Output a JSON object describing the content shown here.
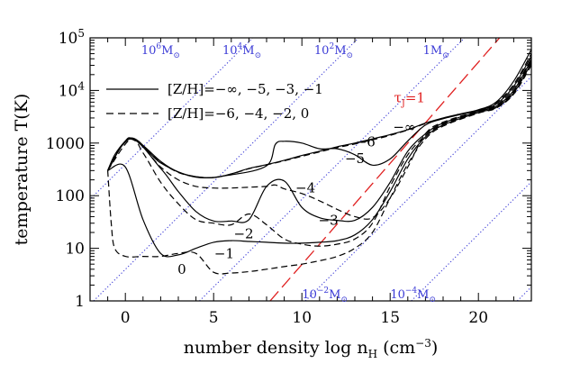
{
  "chart_data": {
    "type": "line",
    "xlabel": {
      "main": "number density log n",
      "sub": "H",
      "tail": " (cm",
      "sup": "−3",
      "close": ")"
    },
    "ylabel": "temperature T(K)",
    "xlim": [
      -2,
      23
    ],
    "ylim_log10": [
      0,
      5
    ],
    "yscale": "log",
    "x_ticks": [
      {
        "value": 0,
        "label": "0"
      },
      {
        "value": 5,
        "label": "5"
      },
      {
        "value": 10,
        "label": "10"
      },
      {
        "value": 15,
        "label": "15"
      },
      {
        "value": 20,
        "label": "20"
      }
    ],
    "y_ticks": [
      {
        "value": 1,
        "label": "1"
      },
      {
        "value": 10,
        "label": "10"
      },
      {
        "value": 100,
        "label": "100"
      },
      {
        "value": 1000,
        "label": "1000"
      },
      {
        "value": 10000,
        "label": "10",
        "sup": "4"
      },
      {
        "value": 100000,
        "label": "10",
        "sup": "5"
      }
    ],
    "legend": [
      {
        "style": "solid",
        "label": "[Z/H]=−∞, −5, −3, −1"
      },
      {
        "style": "dashed",
        "label": "[Z/H]=−6, −4, −2, 0"
      }
    ],
    "series": [
      {
        "label": "−∞",
        "style": "solid",
        "x": [
          -1,
          -0.6,
          0,
          0.3,
          1,
          2,
          3,
          4,
          5,
          6,
          7,
          8,
          9,
          10,
          11,
          12,
          13,
          14,
          15,
          16,
          17,
          18,
          19,
          20,
          21,
          22,
          23
        ],
        "y": [
          300,
          600,
          1100,
          1250,
          900,
          450,
          280,
          230,
          220,
          260,
          330,
          390,
          470,
          580,
          700,
          850,
          1000,
          1200,
          1450,
          1800,
          2400,
          3000,
          3600,
          4300,
          6000,
          15000,
          60000
        ]
      },
      {
        "label": "−6",
        "style": "dashed",
        "x": [
          -1,
          -0.6,
          0,
          0.3,
          1,
          2,
          3,
          4,
          5,
          6,
          7,
          8,
          9,
          10,
          11,
          12,
          13,
          14,
          15,
          16,
          17,
          18,
          19,
          20,
          21,
          22,
          23
        ],
        "y": [
          300,
          580,
          1050,
          1200,
          880,
          440,
          275,
          230,
          222,
          258,
          325,
          385,
          460,
          560,
          680,
          820,
          960,
          1150,
          1400,
          1780,
          2350,
          2950,
          3550,
          4250,
          5800,
          13000,
          50000
        ]
      },
      {
        "label": "−5",
        "style": "solid",
        "x": [
          -1,
          0.3,
          2,
          4,
          6,
          8,
          8.5,
          9,
          10,
          11,
          12,
          13,
          14,
          15,
          16,
          17,
          18,
          20,
          21,
          22,
          23
        ],
        "y": [
          300,
          1250,
          420,
          225,
          250,
          370,
          950,
          1080,
          1000,
          780,
          780,
          600,
          380,
          500,
          1100,
          2200,
          2900,
          4200,
          5500,
          12000,
          45000
        ]
      },
      {
        "label": "−4",
        "style": "dashed",
        "x": [
          -1,
          0.3,
          2,
          3,
          4,
          5,
          6,
          7,
          8,
          8.5,
          9,
          10,
          11,
          12,
          13,
          14,
          15,
          16,
          17,
          18,
          20,
          21,
          22,
          23
        ],
        "y": [
          300,
          1200,
          350,
          200,
          150,
          140,
          140,
          145,
          150,
          160,
          135,
          110,
          80,
          55,
          40,
          38,
          90,
          350,
          1500,
          2500,
          4100,
          5200,
          11000,
          40000
        ]
      },
      {
        "label": "−3",
        "style": "solid",
        "x": [
          -1,
          0.3,
          2,
          3,
          4,
          5,
          6,
          7,
          8,
          9,
          10,
          11,
          12,
          13,
          14,
          15,
          16,
          17,
          18,
          20,
          21,
          22,
          23
        ],
        "y": [
          300,
          1200,
          330,
          120,
          50,
          33,
          33,
          35,
          150,
          190,
          60,
          38,
          34,
          34,
          60,
          180,
          700,
          1500,
          2400,
          4000,
          5000,
          10000,
          38000
        ]
      },
      {
        "label": "−2",
        "style": "dashed",
        "x": [
          -1,
          0.3,
          1,
          2,
          3,
          4,
          5,
          6,
          7,
          8,
          9,
          10,
          11,
          12,
          13,
          14,
          15,
          16,
          17,
          18,
          20,
          21,
          22,
          23
        ],
        "y": [
          300,
          1200,
          650,
          180,
          70,
          35,
          30,
          28,
          45,
          28,
          15,
          12,
          11,
          12,
          15,
          30,
          150,
          600,
          1400,
          2300,
          3900,
          4900,
          9500,
          35000
        ]
      },
      {
        "label": "−1",
        "style": "solid",
        "x": [
          -1,
          0,
          1,
          2,
          3,
          4,
          5,
          6,
          7,
          8,
          9,
          10,
          11,
          12,
          13,
          14,
          15,
          16,
          17,
          18,
          20,
          21,
          22,
          23
        ],
        "y": [
          300,
          350,
          35,
          8,
          7.5,
          10,
          13,
          14,
          13.5,
          13,
          12.5,
          12.5,
          13,
          14,
          18,
          35,
          120,
          500,
          1300,
          2200,
          3800,
          4700,
          9000,
          33000
        ]
      },
      {
        "label": "0",
        "style": "dashed",
        "x": [
          -1,
          -0.8,
          -0.6,
          0,
          1,
          2,
          3,
          4,
          5,
          6,
          7,
          8,
          9,
          10,
          11,
          12,
          13,
          14,
          15,
          16,
          17,
          18,
          20,
          21,
          22,
          23
        ],
        "y": [
          300,
          30,
          10,
          7,
          7,
          7,
          8,
          8,
          3.5,
          3.4,
          3.6,
          4,
          4.5,
          5,
          5.8,
          7,
          10,
          20,
          90,
          400,
          1200,
          2100,
          3700,
          4600,
          8500,
          30000
        ]
      }
    ],
    "curve_labels": [
      {
        "text": "−∞",
        "x": 15.8,
        "y": 2000
      },
      {
        "text": "−6",
        "x": 13.6,
        "y": 1050
      },
      {
        "text": "−5",
        "x": 13.0,
        "y": 510
      },
      {
        "text": "−4",
        "x": 10.2,
        "y": 140
      },
      {
        "text": "−3",
        "x": 11.5,
        "y": 34
      },
      {
        "text": "−2",
        "x": 6.7,
        "y": 19
      },
      {
        "text": "−1",
        "x": 5.6,
        "y": 8
      },
      {
        "text": "0",
        "x": 3.2,
        "y": 4
      }
    ],
    "jeans_mass_lines": {
      "color": "#3b3bd6",
      "style": "dotted",
      "slope": 0.333,
      "lines": [
        {
          "label": "10",
          "sup": "6",
          "x0": -7.8,
          "label_at": [
            2.0,
            100000
          ]
        },
        {
          "label": "10",
          "sup": "4",
          "x0": -1.8,
          "label_at": [
            6.6,
            100000
          ]
        },
        {
          "label": "10",
          "sup": "2",
          "x0": 4.2,
          "label_at": [
            11.8,
            100000
          ]
        },
        {
          "label": "1",
          "sup": "",
          "x0": 10.2,
          "label_at": [
            17.6,
            100000
          ]
        },
        {
          "label": "10",
          "sup": "−2",
          "x0": 16.2,
          "label_at": [
            11.3,
            2.3
          ]
        },
        {
          "label": "10",
          "sup": "−4",
          "x0": 22.2,
          "label_at": [
            16.3,
            2.3
          ]
        }
      ],
      "unit": "M",
      "unit_sub": "⊙"
    },
    "tau_line": {
      "label": "τ",
      "sub": "J",
      "tail": "=1",
      "color": "#e02020",
      "style": "long-dashed",
      "points": [
        [
          8.2,
          1
        ],
        [
          21.2,
          100000
        ]
      ],
      "label_at": [
        16.1,
        7200
      ]
    }
  }
}
